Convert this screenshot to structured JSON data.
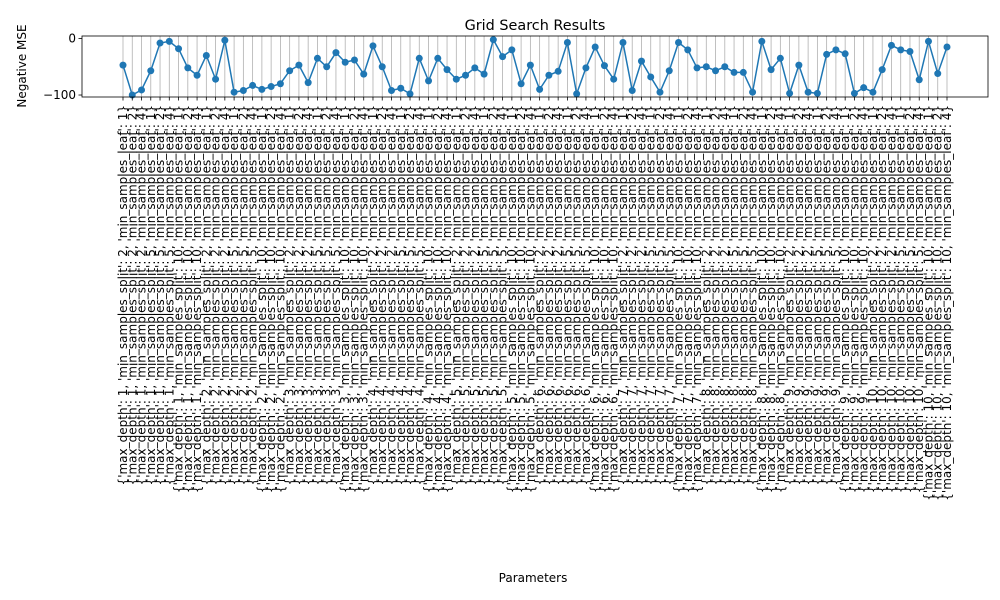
{
  "chart_data": {
    "type": "line",
    "title": "Grid Search Results",
    "xlabel": "Parameters",
    "ylabel": "Negative MSE",
    "yticks": [
      0,
      -100
    ],
    "ylim": [
      -103.5,
      4.5
    ],
    "grid": "vertical",
    "marker": "circle",
    "color": "#1f77b4",
    "grid_color": "#b0b0b0",
    "max_depth": [
      1,
      2,
      3,
      4,
      5,
      6,
      7,
      8,
      9,
      10
    ],
    "min_samples_split": [
      2,
      5,
      10
    ],
    "min_samples_leaf": [
      1,
      2,
      4
    ],
    "categories": [
      "{'max_depth': 1, 'min_samples_split': 2, 'min_samples_leaf': 1}",
      "{'max_depth': 1, 'min_samples_split': 2, 'min_samples_leaf': 2}",
      "{'max_depth': 1, 'min_samples_split': 2, 'min_samples_leaf': 4}",
      "{'max_depth': 1, 'min_samples_split': 5, 'min_samples_leaf': 1}",
      "{'max_depth': 1, 'min_samples_split': 5, 'min_samples_leaf': 2}",
      "{'max_depth': 1, 'min_samples_split': 5, 'min_samples_leaf': 4}",
      "{'max_depth': 1, 'min_samples_split': 10, 'min_samples_leaf': 1}",
      "{'max_depth': 1, 'min_samples_split': 10, 'min_samples_leaf': 2}",
      "{'max_depth': 1, 'min_samples_split': 10, 'min_samples_leaf': 4}",
      "{'max_depth': 2, 'min_samples_split': 2, 'min_samples_leaf': 1}",
      "{'max_depth': 2, 'min_samples_split': 2, 'min_samples_leaf': 2}",
      "{'max_depth': 2, 'min_samples_split': 2, 'min_samples_leaf': 4}",
      "{'max_depth': 2, 'min_samples_split': 5, 'min_samples_leaf': 1}",
      "{'max_depth': 2, 'min_samples_split': 5, 'min_samples_leaf': 2}",
      "{'max_depth': 2, 'min_samples_split': 5, 'min_samples_leaf': 4}",
      "{'max_depth': 2, 'min_samples_split': 10, 'min_samples_leaf': 1}",
      "{'max_depth': 2, 'min_samples_split': 10, 'min_samples_leaf': 2}",
      "{'max_depth': 2, 'min_samples_split': 10, 'min_samples_leaf': 4}",
      "{'max_depth': 3, 'min_samples_split': 2, 'min_samples_leaf': 1}",
      "{'max_depth': 3, 'min_samples_split': 2, 'min_samples_leaf': 2}",
      "{'max_depth': 3, 'min_samples_split': 2, 'min_samples_leaf': 4}",
      "{'max_depth': 3, 'min_samples_split': 5, 'min_samples_leaf': 1}",
      "{'max_depth': 3, 'min_samples_split': 5, 'min_samples_leaf': 2}",
      "{'max_depth': 3, 'min_samples_split': 5, 'min_samples_leaf': 4}",
      "{'max_depth': 3, 'min_samples_split': 10, 'min_samples_leaf': 1}",
      "{'max_depth': 3, 'min_samples_split': 10, 'min_samples_leaf': 2}",
      "{'max_depth': 3, 'min_samples_split': 10, 'min_samples_leaf': 4}",
      "{'max_depth': 4, 'min_samples_split': 2, 'min_samples_leaf': 1}",
      "{'max_depth': 4, 'min_samples_split': 2, 'min_samples_leaf': 2}",
      "{'max_depth': 4, 'min_samples_split': 2, 'min_samples_leaf': 4}",
      "{'max_depth': 4, 'min_samples_split': 5, 'min_samples_leaf': 1}",
      "{'max_depth': 4, 'min_samples_split': 5, 'min_samples_leaf': 2}",
      "{'max_depth': 4, 'min_samples_split': 5, 'min_samples_leaf': 4}",
      "{'max_depth': 4, 'min_samples_split': 10, 'min_samples_leaf': 1}",
      "{'max_depth': 4, 'min_samples_split': 10, 'min_samples_leaf': 2}",
      "{'max_depth': 4, 'min_samples_split': 10, 'min_samples_leaf': 4}",
      "{'max_depth': 5, 'min_samples_split': 2, 'min_samples_leaf': 1}",
      "{'max_depth': 5, 'min_samples_split': 2, 'min_samples_leaf': 2}",
      "{'max_depth': 5, 'min_samples_split': 2, 'min_samples_leaf': 4}",
      "{'max_depth': 5, 'min_samples_split': 5, 'min_samples_leaf': 1}",
      "{'max_depth': 5, 'min_samples_split': 5, 'min_samples_leaf': 2}",
      "{'max_depth': 5, 'min_samples_split': 5, 'min_samples_leaf': 4}",
      "{'max_depth': 5, 'min_samples_split': 10, 'min_samples_leaf': 1}",
      "{'max_depth': 5, 'min_samples_split': 10, 'min_samples_leaf': 2}",
      "{'max_depth': 5, 'min_samples_split': 10, 'min_samples_leaf': 4}",
      "{'max_depth': 6, 'min_samples_split': 2, 'min_samples_leaf': 1}",
      "{'max_depth': 6, 'min_samples_split': 2, 'min_samples_leaf': 2}",
      "{'max_depth': 6, 'min_samples_split': 2, 'min_samples_leaf': 4}",
      "{'max_depth': 6, 'min_samples_split': 5, 'min_samples_leaf': 1}",
      "{'max_depth': 6, 'min_samples_split': 5, 'min_samples_leaf': 2}",
      "{'max_depth': 6, 'min_samples_split': 5, 'min_samples_leaf': 4}",
      "{'max_depth': 6, 'min_samples_split': 10, 'min_samples_leaf': 1}",
      "{'max_depth': 6, 'min_samples_split': 10, 'min_samples_leaf': 2}",
      "{'max_depth': 6, 'min_samples_split': 10, 'min_samples_leaf': 4}",
      "{'max_depth': 7, 'min_samples_split': 2, 'min_samples_leaf': 1}",
      "{'max_depth': 7, 'min_samples_split': 2, 'min_samples_leaf': 2}",
      "{'max_depth': 7, 'min_samples_split': 2, 'min_samples_leaf': 4}",
      "{'max_depth': 7, 'min_samples_split': 5, 'min_samples_leaf': 1}",
      "{'max_depth': 7, 'min_samples_split': 5, 'min_samples_leaf': 2}",
      "{'max_depth': 7, 'min_samples_split': 5, 'min_samples_leaf': 4}",
      "{'max_depth': 7, 'min_samples_split': 10, 'min_samples_leaf': 1}",
      "{'max_depth': 7, 'min_samples_split': 10, 'min_samples_leaf': 2}",
      "{'max_depth': 7, 'min_samples_split': 10, 'min_samples_leaf': 4}",
      "{'max_depth': 8, 'min_samples_split': 2, 'min_samples_leaf': 1}",
      "{'max_depth': 8, 'min_samples_split': 2, 'min_samples_leaf': 2}",
      "{'max_depth': 8, 'min_samples_split': 2, 'min_samples_leaf': 4}",
      "{'max_depth': 8, 'min_samples_split': 5, 'min_samples_leaf': 1}",
      "{'max_depth': 8, 'min_samples_split': 5, 'min_samples_leaf': 2}",
      "{'max_depth': 8, 'min_samples_split': 5, 'min_samples_leaf': 4}",
      "{'max_depth': 8, 'min_samples_split': 10, 'min_samples_leaf': 1}",
      "{'max_depth': 8, 'min_samples_split': 10, 'min_samples_leaf': 2}",
      "{'max_depth': 8, 'min_samples_split': 10, 'min_samples_leaf': 4}",
      "{'max_depth': 9, 'min_samples_split': 2, 'min_samples_leaf': 1}",
      "{'max_depth': 9, 'min_samples_split': 2, 'min_samples_leaf': 2}",
      "{'max_depth': 9, 'min_samples_split': 2, 'min_samples_leaf': 4}",
      "{'max_depth': 9, 'min_samples_split': 5, 'min_samples_leaf': 1}",
      "{'max_depth': 9, 'min_samples_split': 5, 'min_samples_leaf': 2}",
      "{'max_depth': 9, 'min_samples_split': 5, 'min_samples_leaf': 4}",
      "{'max_depth': 9, 'min_samples_split': 10, 'min_samples_leaf': 1}",
      "{'max_depth': 9, 'min_samples_split': 10, 'min_samples_leaf': 2}",
      "{'max_depth': 9, 'min_samples_split': 10, 'min_samples_leaf': 4}",
      "{'max_depth': 10, 'min_samples_split': 2, 'min_samples_leaf': 1}",
      "{'max_depth': 10, 'min_samples_split': 2, 'min_samples_leaf': 2}",
      "{'max_depth': 10, 'min_samples_split': 2, 'min_samples_leaf': 4}",
      "{'max_depth': 10, 'min_samples_split': 5, 'min_samples_leaf': 1}",
      "{'max_depth': 10, 'min_samples_split': 5, 'min_samples_leaf': 2}",
      "{'max_depth': 10, 'min_samples_split': 5, 'min_samples_leaf': 4}",
      "{'max_depth': 10, 'min_samples_split': 10, 'min_samples_leaf': 1}",
      "{'max_depth': 10, 'min_samples_split': 10, 'min_samples_leaf': 2}",
      "{'max_depth': 10, 'min_samples_split': 10, 'min_samples_leaf': 4}"
    ],
    "values": [
      -47,
      -100,
      -91,
      -57,
      -8,
      -5,
      -18,
      -52,
      -65,
      -30,
      -72,
      -3,
      -95,
      -92,
      -83,
      -90,
      -85,
      -80,
      -57,
      -47,
      -78,
      -35,
      -50,
      -25,
      -42,
      -38,
      -63,
      -13,
      -50,
      -92,
      -88,
      -98,
      -35,
      -75,
      -35,
      -55,
      -72,
      -65,
      -52,
      -63,
      -2,
      -32,
      -20,
      -80,
      -47,
      -90,
      -65,
      -58,
      -7,
      -98,
      -52,
      -15,
      -48,
      -72,
      -7,
      -92,
      -40,
      -68,
      -95,
      -57,
      -7,
      -20,
      -52,
      -50,
      -57,
      -50,
      -60,
      -60,
      -95,
      -5,
      -55,
      -35,
      -97,
      -47,
      -95,
      -97,
      -28,
      -20,
      -27,
      -97,
      -87,
      -95,
      -55,
      -12,
      -20,
      -23,
      -73,
      -5,
      -62,
      -15
    ]
  }
}
